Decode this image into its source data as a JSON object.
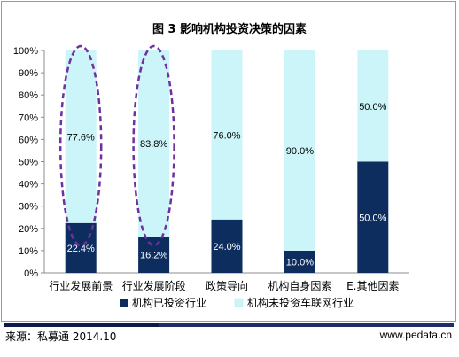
{
  "chart_data": {
    "type": "bar",
    "stacked": true,
    "percent_stacked": true,
    "title": "图 3 影响机构投资决策的因素",
    "categories": [
      "行业发展前景",
      "行业发展阶段",
      "政策导向",
      "机构自身因素",
      "E.其他因素"
    ],
    "series": [
      {
        "name": "机构已投资行业",
        "values": [
          22.4,
          16.2,
          24.0,
          10.0,
          50.0
        ],
        "color": "#0d2d5e"
      },
      {
        "name": "机构未投资车联网行业",
        "values": [
          77.6,
          83.8,
          76.0,
          90.0,
          50.0
        ],
        "color": "#ccf5f9"
      }
    ],
    "data_labels": {
      "series_0": [
        "22.4%",
        "16.2%",
        "24.0%",
        "10.0%",
        "50.0%"
      ],
      "series_1": [
        "77.6%",
        "83.8%",
        "76.0%",
        "90.0%",
        "50.0%"
      ]
    },
    "yticks": [
      "0%",
      "10%",
      "20%",
      "30%",
      "40%",
      "50%",
      "60%",
      "70%",
      "80%",
      "90%",
      "100%"
    ],
    "ylim": [
      0,
      100
    ],
    "grid": false,
    "legend": "bottom",
    "highlight": {
      "categories": [
        0,
        1
      ],
      "style": "dashed-ellipse",
      "color": "#7030a0"
    }
  },
  "footer": {
    "source": "来源：私募通    2014.10",
    "website": "www.pedata.cn"
  }
}
